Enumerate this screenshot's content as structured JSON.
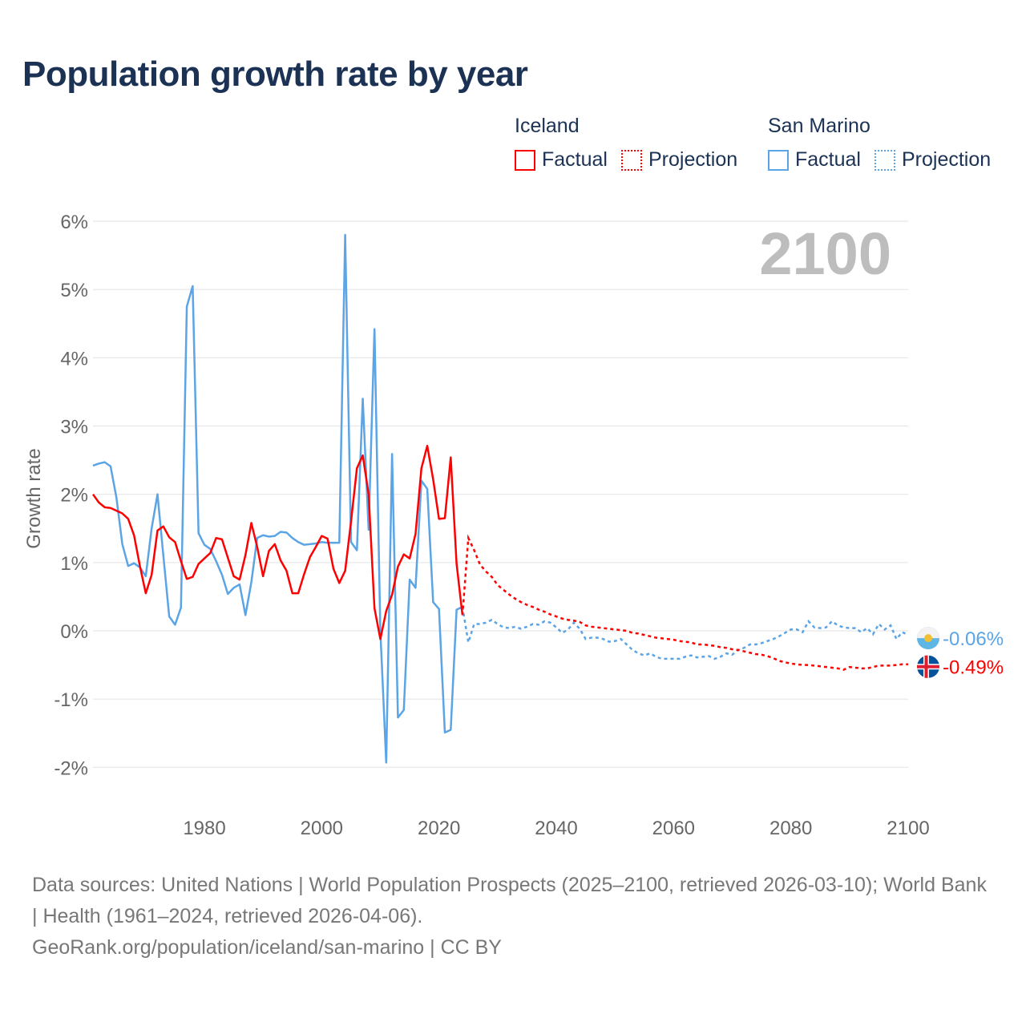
{
  "title": "Population growth rate by year",
  "legend": {
    "groups": [
      {
        "name": "Iceland",
        "factual": "Factual",
        "projection": "Projection",
        "color": "#ff0000"
      },
      {
        "name": "San Marino",
        "factual": "Factual",
        "projection": "Projection",
        "color": "#5ba4e6"
      }
    ]
  },
  "year_label": "2100",
  "source_lines": [
    "Data sources: United Nations | World Population Prospects (2025–2100, retrieved 2026-03-10); World Bank | Health (1961–2024, retrieved 2026-04-06).",
    "GeoRank.org/population/iceland/san-marino | CC BY"
  ],
  "chart_data": {
    "type": "line",
    "title": "Population growth rate by year",
    "xlabel": "",
    "ylabel": "Growth rate",
    "xlim": [
      1961,
      2100
    ],
    "ylim": [
      -2,
      6
    ],
    "x_ticks": [
      1980,
      2000,
      2020,
      2040,
      2060,
      2080,
      2100
    ],
    "x_tick_labels": [
      "1980",
      "2000",
      "2020",
      "2040",
      "2060",
      "2080",
      "2100"
    ],
    "y_ticks": [
      -2,
      -1,
      0,
      1,
      2,
      3,
      4,
      5,
      6
    ],
    "y_tick_labels": [
      "-2%",
      "-1%",
      "0%",
      "1%",
      "2%",
      "3%",
      "4%",
      "5%",
      "6%"
    ],
    "grid": true,
    "legend_position": "top-right",
    "factual_start": 1961,
    "projection_start": 2025,
    "series": [
      {
        "name": "Iceland",
        "color": "#ff0000",
        "end_label": "-0.49%",
        "factual": [
          2.0,
          1.88,
          1.81,
          1.8,
          1.76,
          1.72,
          1.64,
          1.4,
          0.95,
          0.55,
          0.82,
          1.47,
          1.53,
          1.37,
          1.3,
          1.02,
          0.76,
          0.79,
          0.98,
          1.06,
          1.14,
          1.36,
          1.34,
          1.07,
          0.8,
          0.75,
          1.11,
          1.58,
          1.23,
          0.8,
          1.17,
          1.27,
          1.03,
          0.88,
          0.55,
          0.55,
          0.83,
          1.08,
          1.23,
          1.39,
          1.35,
          0.91,
          0.7,
          0.88,
          1.6,
          2.38,
          2.57,
          2.0,
          0.33,
          -0.12,
          0.29,
          0.53,
          0.94,
          1.12,
          1.06,
          1.42,
          2.38,
          2.71,
          2.22,
          1.64,
          1.65,
          2.54,
          0.98,
          0.23
        ],
        "projection": [
          1.36,
          1.18,
          0.97,
          0.87,
          0.79,
          0.67,
          0.6,
          0.53,
          0.47,
          0.42,
          0.38,
          0.35,
          0.31,
          0.28,
          0.24,
          0.21,
          0.18,
          0.16,
          0.15,
          0.13,
          0.08,
          0.06,
          0.05,
          0.04,
          0.03,
          0.02,
          0.01,
          0.0,
          -0.03,
          -0.04,
          -0.06,
          -0.08,
          -0.1,
          -0.11,
          -0.12,
          -0.13,
          -0.15,
          -0.16,
          -0.17,
          -0.2,
          -0.2,
          -0.21,
          -0.22,
          -0.24,
          -0.25,
          -0.27,
          -0.28,
          -0.3,
          -0.32,
          -0.34,
          -0.35,
          -0.37,
          -0.4,
          -0.44,
          -0.46,
          -0.48,
          -0.49,
          -0.5,
          -0.5,
          -0.51,
          -0.52,
          -0.53,
          -0.54,
          -0.55,
          -0.57,
          -0.53,
          -0.54,
          -0.55,
          -0.55,
          -0.53,
          -0.51,
          -0.51,
          -0.51,
          -0.5,
          -0.49,
          -0.49
        ]
      },
      {
        "name": "San Marino",
        "color": "#5ba4e6",
        "end_label": "-0.06%",
        "factual": [
          2.42,
          2.45,
          2.47,
          2.41,
          1.95,
          1.27,
          0.95,
          0.99,
          0.93,
          0.8,
          1.5,
          2.0,
          1.1,
          0.21,
          0.09,
          0.34,
          4.75,
          5.05,
          1.43,
          1.26,
          1.2,
          1.02,
          0.82,
          0.54,
          0.63,
          0.68,
          0.23,
          0.71,
          1.36,
          1.4,
          1.38,
          1.39,
          1.45,
          1.44,
          1.36,
          1.3,
          1.26,
          1.27,
          1.28,
          1.3,
          1.29,
          1.29,
          1.29,
          5.8,
          1.3,
          1.18,
          3.4,
          1.48,
          4.42,
          0.0,
          -1.93,
          2.59,
          -1.27,
          -1.16,
          0.75,
          0.63,
          2.2,
          2.08,
          0.42,
          0.32,
          -1.49,
          -1.45,
          0.31,
          0.35
        ],
        "projection": [
          -0.17,
          0.1,
          0.1,
          0.12,
          0.16,
          0.1,
          0.05,
          0.04,
          0.06,
          0.03,
          0.06,
          0.1,
          0.09,
          0.14,
          0.12,
          0.05,
          -0.03,
          0.02,
          0.12,
          0.03,
          -0.12,
          -0.1,
          -0.1,
          -0.12,
          -0.16,
          -0.15,
          -0.12,
          -0.2,
          -0.28,
          -0.33,
          -0.36,
          -0.33,
          -0.38,
          -0.41,
          -0.41,
          -0.41,
          -0.41,
          -0.38,
          -0.36,
          -0.39,
          -0.38,
          -0.37,
          -0.41,
          -0.38,
          -0.33,
          -0.35,
          -0.28,
          -0.25,
          -0.2,
          -0.2,
          -0.18,
          -0.15,
          -0.12,
          -0.08,
          -0.03,
          0.02,
          0.02,
          -0.02,
          0.14,
          0.05,
          0.04,
          0.05,
          0.14,
          0.08,
          0.05,
          0.04,
          0.04,
          -0.02,
          0.04,
          -0.05,
          0.1,
          0.02,
          0.08,
          -0.12,
          -0.02,
          -0.06
        ]
      }
    ]
  }
}
